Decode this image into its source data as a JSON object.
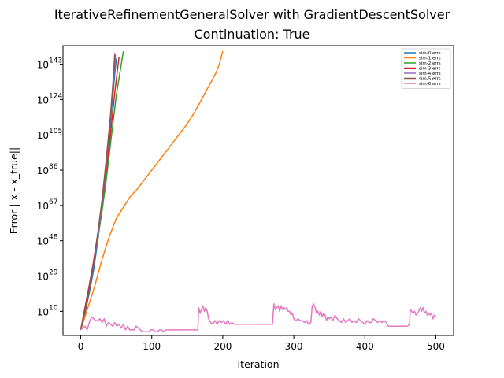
{
  "chart_data": {
    "type": "line",
    "title": "IterativeRefinementGeneralSolver with GradientDescentSolver",
    "subtitle": "Continuation: True",
    "xlabel": "Iteration",
    "ylabel": "Error ||x - x_true||",
    "xlim": [
      -25,
      525
    ],
    "ylog_exponent_lim": [
      -3,
      153
    ],
    "y_scale": "log",
    "xticks": [
      0,
      100,
      200,
      300,
      400,
      500
    ],
    "yticks_exponent": [
      10,
      29,
      48,
      67,
      86,
      105,
      124,
      143
    ],
    "ytick_base": "10",
    "grid": false,
    "legend_position": "top-right",
    "series": [
      {
        "name": "sim-0 errs",
        "color": "#1f77b4",
        "log10_values": [
          [
            0,
            0
          ],
          [
            6,
            9
          ],
          [
            12,
            20
          ],
          [
            18,
            32
          ],
          [
            24,
            48
          ],
          [
            30,
            66
          ],
          [
            36,
            88
          ],
          [
            42,
            112
          ],
          [
            48,
            138
          ],
          [
            50,
            146
          ]
        ]
      },
      {
        "name": "sim-1 errs",
        "color": "#ff7f0e",
        "log10_values": [
          [
            0,
            0
          ],
          [
            5,
            6
          ],
          [
            10,
            12
          ],
          [
            15,
            18
          ],
          [
            20,
            24
          ],
          [
            25,
            31
          ],
          [
            30,
            38
          ],
          [
            35,
            44
          ],
          [
            40,
            50
          ],
          [
            45,
            55
          ],
          [
            50,
            60
          ],
          [
            60,
            66
          ],
          [
            70,
            72
          ],
          [
            80,
            76
          ],
          [
            90,
            81
          ],
          [
            100,
            86
          ],
          [
            110,
            91
          ],
          [
            120,
            96
          ],
          [
            130,
            101
          ],
          [
            140,
            106
          ],
          [
            150,
            111
          ],
          [
            160,
            117
          ],
          [
            170,
            124
          ],
          [
            180,
            131
          ],
          [
            190,
            138
          ],
          [
            195,
            143
          ],
          [
            200,
            150
          ]
        ]
      },
      {
        "name": "sim-2 errs",
        "color": "#2ca02c",
        "log10_values": [
          [
            0,
            0
          ],
          [
            5,
            10
          ],
          [
            10,
            20
          ],
          [
            15,
            30
          ],
          [
            20,
            40
          ],
          [
            25,
            52
          ],
          [
            30,
            64
          ],
          [
            35,
            78
          ],
          [
            40,
            94
          ],
          [
            45,
            110
          ],
          [
            50,
            126
          ],
          [
            55,
            138
          ],
          [
            60,
            150
          ]
        ]
      },
      {
        "name": "sim-3 errs",
        "color": "#d62728",
        "log10_values": [
          [
            0,
            0
          ],
          [
            6,
            12
          ],
          [
            12,
            24
          ],
          [
            18,
            37
          ],
          [
            24,
            52
          ],
          [
            30,
            68
          ],
          [
            36,
            86
          ],
          [
            42,
            106
          ],
          [
            48,
            128
          ],
          [
            54,
            147
          ]
        ]
      },
      {
        "name": "sim-4 errs",
        "color": "#9467bd",
        "log10_values": [
          [
            0,
            0
          ],
          [
            6,
            10
          ],
          [
            12,
            22
          ],
          [
            18,
            35
          ],
          [
            24,
            50
          ],
          [
            30,
            68
          ],
          [
            36,
            90
          ],
          [
            42,
            114
          ],
          [
            47,
            138
          ],
          [
            49,
            148
          ]
        ]
      },
      {
        "name": "sim-5 errs",
        "color": "#8c564b",
        "log10_values": [
          [
            0,
            0
          ],
          [
            6,
            10
          ],
          [
            12,
            22
          ],
          [
            18,
            36
          ],
          [
            24,
            52
          ],
          [
            30,
            70
          ],
          [
            36,
            92
          ],
          [
            42,
            116
          ],
          [
            46,
            136
          ],
          [
            48,
            149
          ]
        ]
      },
      {
        "name": "sim-6 errs",
        "color": "#e377c2",
        "log10_values": [
          [
            0,
            0
          ],
          [
            3,
            1
          ],
          [
            6,
            2
          ],
          [
            9,
            0
          ],
          [
            12,
            4
          ],
          [
            15,
            7
          ],
          [
            18,
            6
          ],
          [
            21,
            5
          ],
          [
            24,
            5
          ],
          [
            27,
            6
          ],
          [
            30,
            4
          ],
          [
            33,
            6
          ],
          [
            36,
            2
          ],
          [
            39,
            4
          ],
          [
            42,
            3
          ],
          [
            45,
            2
          ],
          [
            48,
            4
          ],
          [
            51,
            2
          ],
          [
            54,
            3
          ],
          [
            57,
            1
          ],
          [
            60,
            3
          ],
          [
            63,
            0
          ],
          [
            66,
            2
          ],
          [
            69,
            0
          ],
          [
            72,
            0
          ],
          [
            75,
            0
          ],
          [
            78,
            2
          ],
          [
            81,
            1
          ],
          [
            84,
            0
          ],
          [
            87,
            -1
          ],
          [
            90,
            -1
          ],
          [
            93,
            -1
          ],
          [
            96,
            -1
          ],
          [
            99,
            0
          ],
          [
            102,
            0
          ],
          [
            105,
            -1
          ],
          [
            108,
            -1
          ],
          [
            111,
            0
          ],
          [
            114,
            0
          ],
          [
            117,
            -1
          ],
          [
            120,
            0
          ],
          [
            123,
            0
          ],
          [
            126,
            0
          ],
          [
            129,
            0
          ],
          [
            132,
            0
          ],
          [
            135,
            0
          ],
          [
            138,
            0
          ],
          [
            141,
            0
          ],
          [
            144,
            0
          ],
          [
            147,
            0
          ],
          [
            150,
            0
          ],
          [
            153,
            0
          ],
          [
            156,
            0
          ],
          [
            159,
            0
          ],
          [
            162,
            0
          ],
          [
            165,
            0
          ],
          [
            166,
            12
          ],
          [
            168,
            9
          ],
          [
            170,
            11
          ],
          [
            172,
            13
          ],
          [
            174,
            10
          ],
          [
            176,
            12
          ],
          [
            178,
            10
          ],
          [
            180,
            6
          ],
          [
            183,
            4
          ],
          [
            186,
            3
          ],
          [
            189,
            5
          ],
          [
            192,
            3
          ],
          [
            195,
            5
          ],
          [
            198,
            4
          ],
          [
            201,
            5
          ],
          [
            204,
            3
          ],
          [
            207,
            5
          ],
          [
            210,
            3
          ],
          [
            213,
            4
          ],
          [
            216,
            3
          ],
          [
            219,
            3
          ],
          [
            222,
            3
          ],
          [
            225,
            3
          ],
          [
            228,
            3
          ],
          [
            231,
            3
          ],
          [
            234,
            3
          ],
          [
            237,
            3
          ],
          [
            240,
            3
          ],
          [
            243,
            3
          ],
          [
            246,
            3
          ],
          [
            249,
            3
          ],
          [
            252,
            3
          ],
          [
            255,
            3
          ],
          [
            258,
            3
          ],
          [
            261,
            3
          ],
          [
            264,
            3
          ],
          [
            267,
            3
          ],
          [
            270,
            3
          ],
          [
            272,
            14
          ],
          [
            274,
            11
          ],
          [
            276,
            12
          ],
          [
            278,
            13
          ],
          [
            280,
            10
          ],
          [
            282,
            13
          ],
          [
            284,
            11
          ],
          [
            286,
            12
          ],
          [
            288,
            11
          ],
          [
            290,
            12
          ],
          [
            292,
            10
          ],
          [
            294,
            10
          ],
          [
            296,
            8
          ],
          [
            298,
            9
          ],
          [
            300,
            6
          ],
          [
            303,
            5
          ],
          [
            306,
            6
          ],
          [
            309,
            5
          ],
          [
            312,
            5
          ],
          [
            315,
            4
          ],
          [
            318,
            5
          ],
          [
            321,
            3
          ],
          [
            324,
            4
          ],
          [
            326,
            13
          ],
          [
            328,
            14
          ],
          [
            330,
            12
          ],
          [
            332,
            9
          ],
          [
            334,
            10
          ],
          [
            336,
            8
          ],
          [
            338,
            10
          ],
          [
            340,
            7
          ],
          [
            342,
            9
          ],
          [
            344,
            8
          ],
          [
            346,
            5
          ],
          [
            348,
            7
          ],
          [
            350,
            6
          ],
          [
            352,
            7
          ],
          [
            355,
            5
          ],
          [
            358,
            8
          ],
          [
            361,
            6
          ],
          [
            364,
            5
          ],
          [
            367,
            4
          ],
          [
            370,
            6
          ],
          [
            373,
            4
          ],
          [
            376,
            5
          ],
          [
            379,
            6
          ],
          [
            382,
            4
          ],
          [
            385,
            5
          ],
          [
            388,
            4
          ],
          [
            391,
            6
          ],
          [
            394,
            5
          ],
          [
            397,
            4
          ],
          [
            400,
            3
          ],
          [
            403,
            5
          ],
          [
            406,
            4
          ],
          [
            409,
            4
          ],
          [
            412,
            6
          ],
          [
            415,
            5
          ],
          [
            418,
            4
          ],
          [
            421,
            5
          ],
          [
            424,
            4
          ],
          [
            427,
            5
          ],
          [
            430,
            4
          ],
          [
            433,
            2
          ],
          [
            436,
            2
          ],
          [
            439,
            2
          ],
          [
            442,
            2
          ],
          [
            445,
            2
          ],
          [
            448,
            2
          ],
          [
            451,
            2
          ],
          [
            454,
            2
          ],
          [
            457,
            2
          ],
          [
            460,
            2
          ],
          [
            463,
            3
          ],
          [
            464,
            11
          ],
          [
            466,
            10
          ],
          [
            468,
            9
          ],
          [
            470,
            10
          ],
          [
            472,
            8
          ],
          [
            474,
            9
          ],
          [
            476,
            10
          ],
          [
            478,
            12
          ],
          [
            480,
            10
          ],
          [
            482,
            12
          ],
          [
            484,
            9
          ],
          [
            486,
            10
          ],
          [
            488,
            8
          ],
          [
            490,
            9
          ],
          [
            492,
            8
          ],
          [
            494,
            9
          ],
          [
            496,
            6
          ],
          [
            498,
            8
          ],
          [
            500,
            7
          ]
        ]
      }
    ]
  }
}
